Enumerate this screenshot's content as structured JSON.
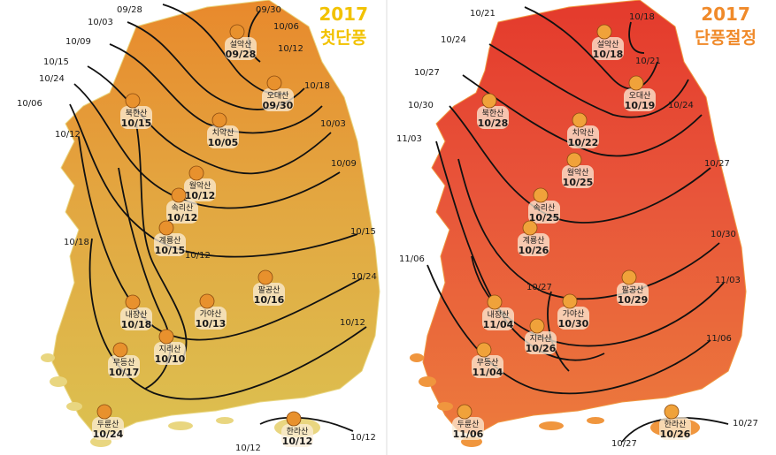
{
  "maps": [
    {
      "id": "first",
      "title_year": "2017",
      "title_name": "첫단풍",
      "colors": {
        "land_north": "#e8892c",
        "land_mid": "#e3a640",
        "land_south": "#dcc050",
        "coast": "#e9d680",
        "leaf": "#e8912d"
      },
      "isolines": [
        "09/28",
        "09/30",
        "10/03",
        "10/06",
        "10/09",
        "10/12",
        "10/15",
        "10/18",
        "10/24",
        "10/03",
        "10/06",
        "10/09",
        "10/12",
        "10/15",
        "10/18",
        "10/24",
        "10/12",
        "10/12",
        "10/12"
      ],
      "mountains": [
        {
          "name": "설악산",
          "date": "09/28"
        },
        {
          "name": "오대산",
          "date": "09/30"
        },
        {
          "name": "북한산",
          "date": "10/15"
        },
        {
          "name": "치악산",
          "date": "10/05"
        },
        {
          "name": "월악산",
          "date": "10/12"
        },
        {
          "name": "속리산",
          "date": "10/12"
        },
        {
          "name": "계룡산",
          "date": "10/15"
        },
        {
          "name": "팔공산",
          "date": "10/16"
        },
        {
          "name": "내장산",
          "date": "10/18"
        },
        {
          "name": "가야산",
          "date": "10/13"
        },
        {
          "name": "지리산",
          "date": "10/10"
        },
        {
          "name": "무등산",
          "date": "10/17"
        },
        {
          "name": "두륜산",
          "date": "10/24"
        },
        {
          "name": "한라산",
          "date": "10/12"
        }
      ]
    },
    {
      "id": "peak",
      "title_year": "2017",
      "title_name": "단풍절정",
      "colors": {
        "land_north": "#e43a2c",
        "land_mid": "#e8553a",
        "land_south": "#ec7a3c",
        "coast": "#f0963e",
        "leaf": "#f0a23a"
      },
      "isolines": [
        "10/21",
        "10/18",
        "10/21",
        "10/24",
        "10/27",
        "10/30",
        "11/03",
        "11/06",
        "10/24",
        "10/27",
        "10/30",
        "11/03",
        "11/06",
        "10/27",
        "10/27",
        "10/27"
      ],
      "mountains": [
        {
          "name": "설악산",
          "date": "10/18"
        },
        {
          "name": "오대산",
          "date": "10/19"
        },
        {
          "name": "북한산",
          "date": "10/28"
        },
        {
          "name": "치악산",
          "date": "10/22"
        },
        {
          "name": "월악산",
          "date": "10/25"
        },
        {
          "name": "속리산",
          "date": "10/25"
        },
        {
          "name": "계룡산",
          "date": "10/26"
        },
        {
          "name": "팔공산",
          "date": "10/29"
        },
        {
          "name": "내장산",
          "date": "11/04"
        },
        {
          "name": "가야산",
          "date": "10/30"
        },
        {
          "name": "지리산",
          "date": "10/26"
        },
        {
          "name": "무등산",
          "date": "11/04"
        },
        {
          "name": "두륜산",
          "date": "11/06"
        },
        {
          "name": "한라산",
          "date": "10/26"
        }
      ]
    }
  ]
}
